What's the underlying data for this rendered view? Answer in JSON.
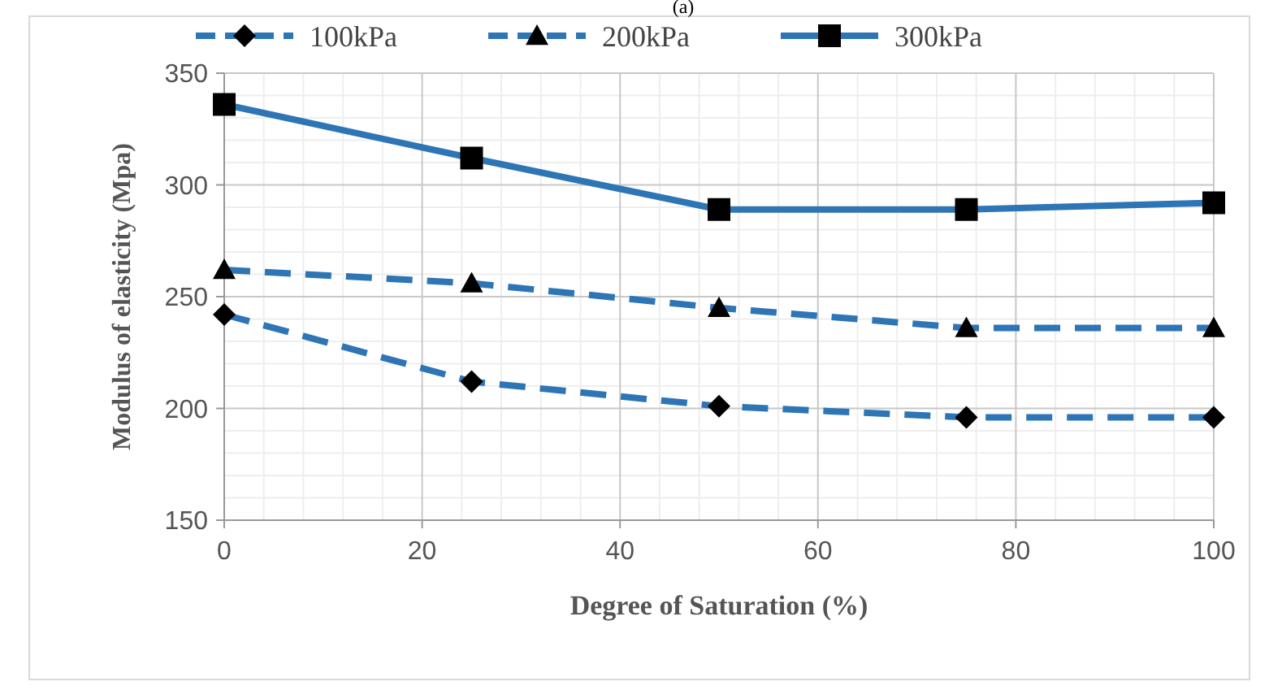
{
  "chart_data": {
    "type": "line",
    "xlabel": "Degree of Saturation (%)",
    "ylabel": "Modulus of elasticity (Mpa)",
    "annotations": [
      "(a)"
    ],
    "x": [
      0,
      25,
      50,
      75,
      100
    ],
    "series": [
      {
        "name": "100kPa",
        "color": "#2e75b6",
        "values": [
          242,
          212,
          201,
          196,
          196
        ],
        "marker": "diamond",
        "line_style": "dashed"
      },
      {
        "name": "200kPa",
        "color": "#2e75b6",
        "values": [
          262,
          256,
          245,
          236,
          236
        ],
        "marker": "triangle",
        "line_style": "dashed"
      },
      {
        "name": "300kPa",
        "color": "#2e75b6",
        "values": [
          336,
          312,
          289,
          289,
          292
        ],
        "marker": "square",
        "line_style": "solid"
      }
    ],
    "xlim": [
      0,
      100
    ],
    "xticks": [
      0,
      20,
      40,
      60,
      80,
      100
    ],
    "ylim": [
      150,
      350
    ],
    "yticks": [
      150,
      200,
      250,
      300,
      350
    ],
    "grid": true,
    "legend": "top"
  }
}
